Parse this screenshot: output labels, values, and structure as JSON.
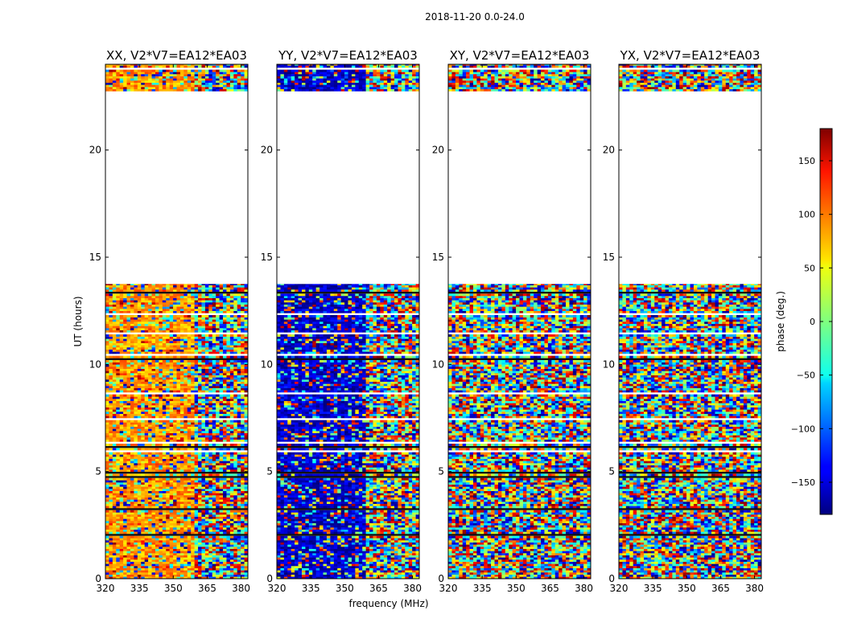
{
  "figure": {
    "suptitle": "2018-11-20 0.0-24.0",
    "xlabel": "frequency (MHz)",
    "ylabel": "UT (hours)"
  },
  "colorbar": {
    "label": "phase (deg.)",
    "range": [
      -180,
      180
    ],
    "ticks": [
      "150",
      "100",
      "50",
      "0",
      "−50",
      "−100",
      "−150"
    ],
    "tick_values": [
      150,
      100,
      50,
      0,
      -50,
      -100,
      -150
    ],
    "colormap": "jet"
  },
  "chart_data": {
    "type": "heatmap",
    "x": {
      "label": "frequency (MHz)",
      "range": [
        320,
        383
      ],
      "ticks": [
        320,
        335,
        350,
        365,
        380
      ],
      "tick_labels": [
        "320",
        "335",
        "350",
        "365",
        "380"
      ]
    },
    "y": {
      "label": "UT (hours)",
      "range": [
        0,
        24
      ],
      "ticks": [
        0,
        5,
        10,
        15,
        20
      ],
      "tick_labels": [
        "0",
        "5",
        "10",
        "15",
        "20"
      ]
    },
    "z": {
      "label": "phase (deg.)",
      "range": [
        -180,
        180
      ]
    },
    "data_time_ranges_hours": [
      [
        0.0,
        13.75
      ],
      [
        22.75,
        24.0
      ]
    ],
    "gap_hours": [
      [
        13.75,
        22.75
      ]
    ],
    "panels": [
      {
        "title": "XX, V2*V7=EA12*EA03",
        "dominant_phase_deg": 80
      },
      {
        "title": "YY, V2*V7=EA12*EA03",
        "dominant_phase_deg": -155
      },
      {
        "title": "XY, V2*V7=EA12*EA03",
        "dominant_phase_deg": null
      },
      {
        "title": "YX, V2*V7=EA12*EA03",
        "dominant_phase_deg": null
      }
    ]
  }
}
